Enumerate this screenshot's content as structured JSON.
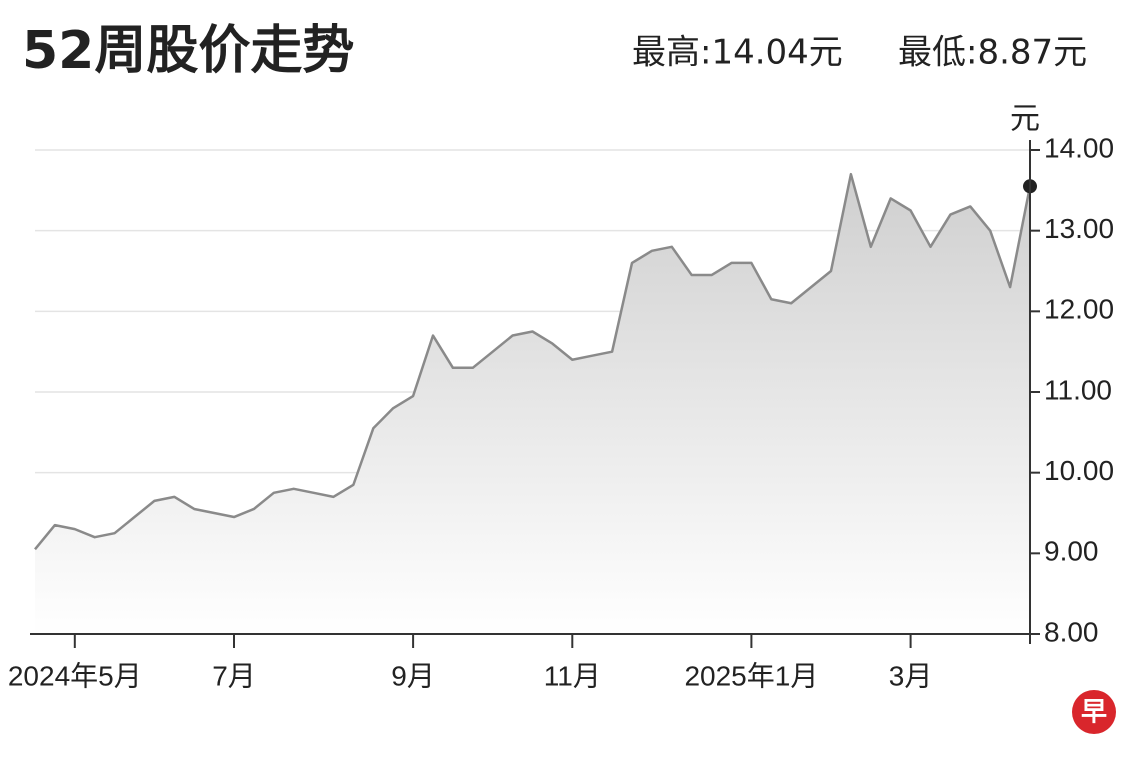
{
  "chart_data": {
    "type": "area",
    "title": "52周股价走势",
    "high_label": "最高:14.04元",
    "low_label": "最低:8.87元",
    "y_unit": "元",
    "logo": "早",
    "categories": [
      null,
      null,
      "2024年5月",
      null,
      null,
      null,
      null,
      null,
      null,
      null,
      "7月",
      null,
      null,
      null,
      null,
      null,
      null,
      null,
      null,
      "9月",
      null,
      null,
      null,
      null,
      null,
      null,
      null,
      "11月",
      null,
      null,
      null,
      null,
      null,
      null,
      null,
      null,
      "2025年1月",
      null,
      null,
      null,
      null,
      null,
      null,
      null,
      "3月",
      null,
      null,
      null,
      null,
      null,
      null
    ],
    "series": [
      {
        "name": "股价",
        "color": "#8a8a8a",
        "values": [
          9.05,
          9.35,
          9.3,
          9.2,
          9.25,
          9.45,
          9.65,
          9.7,
          9.55,
          9.5,
          9.45,
          9.55,
          9.75,
          9.8,
          9.75,
          9.7,
          9.85,
          10.55,
          10.8,
          10.95,
          11.7,
          11.3,
          11.3,
          11.5,
          11.7,
          11.75,
          11.6,
          11.4,
          11.45,
          11.5,
          12.6,
          12.75,
          12.8,
          12.45,
          12.45,
          12.6,
          12.6,
          12.15,
          12.1,
          12.3,
          12.5,
          13.7,
          12.8,
          13.4,
          13.25,
          12.8,
          13.2,
          13.3,
          13.0,
          12.3,
          13.55
        ]
      }
    ],
    "ylim": [
      8,
      14
    ],
    "yticks": [
      {
        "value": 8,
        "label": "8.00"
      },
      {
        "value": 9,
        "label": "9.00"
      },
      {
        "value": 10,
        "label": "10.00"
      },
      {
        "value": 11,
        "label": "11.00"
      },
      {
        "value": 12,
        "label": "12.00"
      },
      {
        "value": 13,
        "label": "13.00"
      },
      {
        "value": 14,
        "label": "14.00"
      }
    ],
    "grid": true
  }
}
